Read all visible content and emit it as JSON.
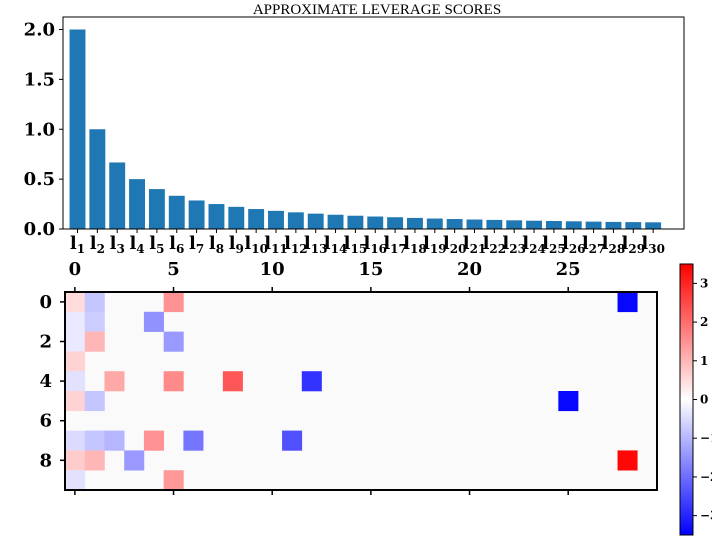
{
  "chart_data": [
    {
      "type": "bar",
      "title": "APPROXIMATE LEVERAGE SCORES",
      "categories": [
        {
          "base": "l",
          "sub": "1"
        },
        {
          "base": "l",
          "sub": "2"
        },
        {
          "base": "l",
          "sub": "3"
        },
        {
          "base": "l",
          "sub": "4"
        },
        {
          "base": "l",
          "sub": "5"
        },
        {
          "base": "l",
          "sub": "6"
        },
        {
          "base": "l",
          "sub": "7"
        },
        {
          "base": "l",
          "sub": "8"
        },
        {
          "base": "l",
          "sub": "9"
        },
        {
          "base": "l",
          "sub": "10"
        },
        {
          "base": "l",
          "sub": "11"
        },
        {
          "base": "l",
          "sub": "12"
        },
        {
          "base": "l",
          "sub": "13"
        },
        {
          "base": "l",
          "sub": "14"
        },
        {
          "base": "l",
          "sub": "15"
        },
        {
          "base": "l",
          "sub": "16"
        },
        {
          "base": "l",
          "sub": "17"
        },
        {
          "base": "l",
          "sub": "18"
        },
        {
          "base": "l",
          "sub": "19"
        },
        {
          "base": "l",
          "sub": "20"
        },
        {
          "base": "l",
          "sub": "21"
        },
        {
          "base": "l",
          "sub": "22"
        },
        {
          "base": "l",
          "sub": "23"
        },
        {
          "base": "l",
          "sub": "24"
        },
        {
          "base": "l",
          "sub": "25"
        },
        {
          "base": "l",
          "sub": "26"
        },
        {
          "base": "l",
          "sub": "27"
        },
        {
          "base": "l",
          "sub": "28"
        },
        {
          "base": "l",
          "sub": "29"
        },
        {
          "base": "l",
          "sub": "30"
        }
      ],
      "values": [
        2.0,
        1.0,
        0.667,
        0.5,
        0.4,
        0.333,
        0.286,
        0.25,
        0.222,
        0.2,
        0.182,
        0.167,
        0.154,
        0.143,
        0.133,
        0.125,
        0.118,
        0.111,
        0.105,
        0.1,
        0.095,
        0.091,
        0.087,
        0.083,
        0.08,
        0.077,
        0.074,
        0.071,
        0.069,
        0.067
      ],
      "ylim": [
        0,
        2.1
      ],
      "yticks": [
        "0.0",
        "0.5",
        "1.0",
        "1.5",
        "2.0"
      ],
      "ytick_values": [
        0,
        0.5,
        1.0,
        1.5,
        2.0
      ],
      "bar_color": "#1f77b4",
      "grid": false
    },
    {
      "type": "heatmap",
      "rows": 10,
      "cols": 30,
      "xticks": [
        "0",
        "5",
        "10",
        "15",
        "20",
        "25"
      ],
      "xtick_values": [
        0,
        5,
        10,
        15,
        20,
        25
      ],
      "xtick_position": "top",
      "yticks": [
        "0",
        "2",
        "4",
        "6",
        "8"
      ],
      "ytick_values": [
        0,
        2,
        4,
        6,
        8
      ],
      "colormap": "bwr",
      "vmin": -3.5,
      "vmax": 3.5,
      "colorbar_ticks": [
        "3",
        "2",
        "1",
        "0",
        "−1",
        "−2",
        "−3"
      ],
      "colorbar_tick_values": [
        3,
        2,
        1,
        0,
        -1,
        -2,
        -3
      ],
      "colorbar_position": "right",
      "cells": [
        {
          "row": 0,
          "col": 0,
          "value": 0.5
        },
        {
          "row": 0,
          "col": 1,
          "value": -0.8
        },
        {
          "row": 0,
          "col": 5,
          "value": 1.5
        },
        {
          "row": 0,
          "col": 28,
          "value": -3.4
        },
        {
          "row": 1,
          "col": 0,
          "value": -0.3
        },
        {
          "row": 1,
          "col": 1,
          "value": -0.7
        },
        {
          "row": 1,
          "col": 4,
          "value": -1.5
        },
        {
          "row": 2,
          "col": 0,
          "value": -0.3
        },
        {
          "row": 2,
          "col": 1,
          "value": 1.0
        },
        {
          "row": 2,
          "col": 5,
          "value": -1.4
        },
        {
          "row": 3,
          "col": 0,
          "value": 0.6
        },
        {
          "row": 4,
          "col": 0,
          "value": -0.4
        },
        {
          "row": 4,
          "col": 2,
          "value": 1.2
        },
        {
          "row": 4,
          "col": 5,
          "value": 1.6
        },
        {
          "row": 4,
          "col": 8,
          "value": 2.3
        },
        {
          "row": 4,
          "col": 12,
          "value": -2.8
        },
        {
          "row": 5,
          "col": 0,
          "value": 0.6
        },
        {
          "row": 5,
          "col": 1,
          "value": -0.8
        },
        {
          "row": 5,
          "col": 25,
          "value": -3.4
        },
        {
          "row": 7,
          "col": 0,
          "value": -0.5
        },
        {
          "row": 7,
          "col": 1,
          "value": -0.8
        },
        {
          "row": 7,
          "col": 2,
          "value": -1.0
        },
        {
          "row": 7,
          "col": 4,
          "value": 1.5
        },
        {
          "row": 7,
          "col": 6,
          "value": -1.9
        },
        {
          "row": 7,
          "col": 11,
          "value": -2.4
        },
        {
          "row": 8,
          "col": 0,
          "value": 0.7
        },
        {
          "row": 8,
          "col": 1,
          "value": 1.0
        },
        {
          "row": 8,
          "col": 3,
          "value": -1.4
        },
        {
          "row": 8,
          "col": 28,
          "value": 3.4
        },
        {
          "row": 9,
          "col": 0,
          "value": -0.4
        },
        {
          "row": 9,
          "col": 5,
          "value": 1.4
        }
      ]
    }
  ]
}
